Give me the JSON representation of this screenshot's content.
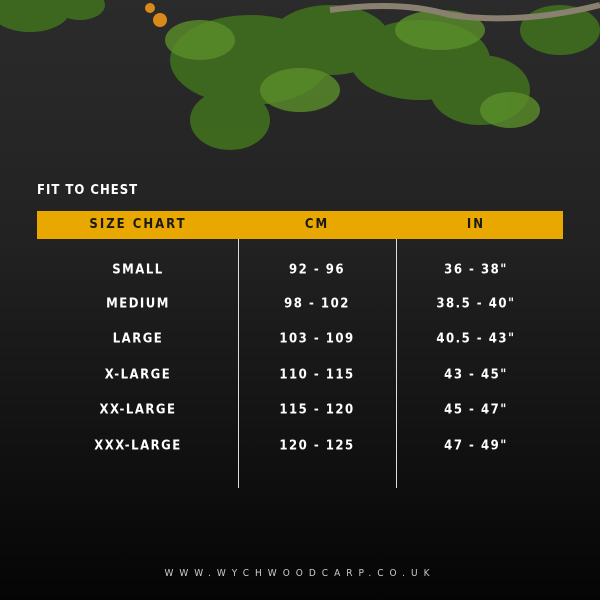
{
  "section_title": "FIT TO CHEST",
  "header": {
    "col1": "SIZE CHART",
    "col2": "CM",
    "col3": "IN"
  },
  "rows": [
    {
      "size": "SMALL",
      "cm": "92 - 96",
      "in": "36 - 38\""
    },
    {
      "size": "MEDIUM",
      "cm": "98 - 102",
      "in": "38.5 - 40\""
    },
    {
      "size": "LARGE",
      "cm": "103 - 109",
      "in": "40.5 - 43\""
    },
    {
      "size": "X-LARGE",
      "cm": "110 - 115",
      "in": "43 - 45\""
    },
    {
      "size": "XX-LARGE",
      "cm": "115 - 120",
      "in": "45 - 47\""
    },
    {
      "size": "XXX-LARGE",
      "cm": "120 - 125",
      "in": "47 - 49\""
    }
  ],
  "footer": "WWW.WYCHWOODCARP.CO.UK",
  "colors": {
    "accent": "#e8a800"
  }
}
